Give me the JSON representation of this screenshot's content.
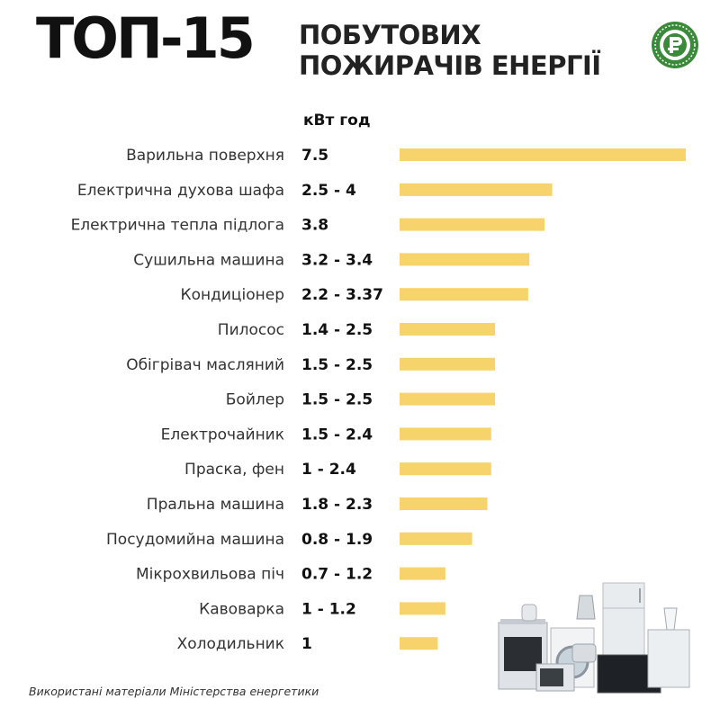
{
  "header": {
    "title_main": "ТОП-15",
    "title_line1": "ПОБУТОВИХ",
    "title_line2": "ПОЖИРАЧІВ ЕНЕРГІЇ"
  },
  "colors": {
    "bar": "#f7d36b",
    "logo_green": "#3a8a3a",
    "text": "#1a1a1a"
  },
  "chart_data": {
    "type": "bar",
    "orientation": "horizontal",
    "unit_label": "кВт год",
    "categories": [
      "Варильна поверхня",
      "Електрична духова шафа",
      "Електрична тепла підлога",
      "Сушильна машина",
      "Кондиціонер",
      "Пилосос",
      "Обігрівач масляний",
      "Бойлер",
      "Електрочайник",
      "Праска, фен",
      "Пральна машина",
      "Посудомийна машина",
      "Мікрохвильова піч",
      "Кавоварка",
      "Холодильник"
    ],
    "value_labels": [
      "7.5",
      "2.5 - 4",
      "3.8",
      "3.2 - 3.4",
      "2.2 - 3.37",
      "1.4 - 2.5",
      "1.5 - 2.5",
      "1.5 - 2.5",
      "1.5 - 2.4",
      "1 - 2.4",
      "1.8 - 2.3",
      "0.8 - 1.9",
      "0.7 - 1.2",
      "1 - 1.2",
      "1"
    ],
    "values": [
      7.5,
      4,
      3.8,
      3.4,
      3.37,
      2.5,
      2.5,
      2.5,
      2.4,
      2.4,
      2.3,
      1.9,
      1.2,
      1.2,
      1
    ],
    "xlim": [
      0,
      7.5
    ],
    "grid": false,
    "legend": "none"
  },
  "footer": {
    "source": "Використані матеріали Міністерства енергетики"
  },
  "icons": [
    "logo-emblem-icon",
    "home-appliances-illustration-icon"
  ]
}
